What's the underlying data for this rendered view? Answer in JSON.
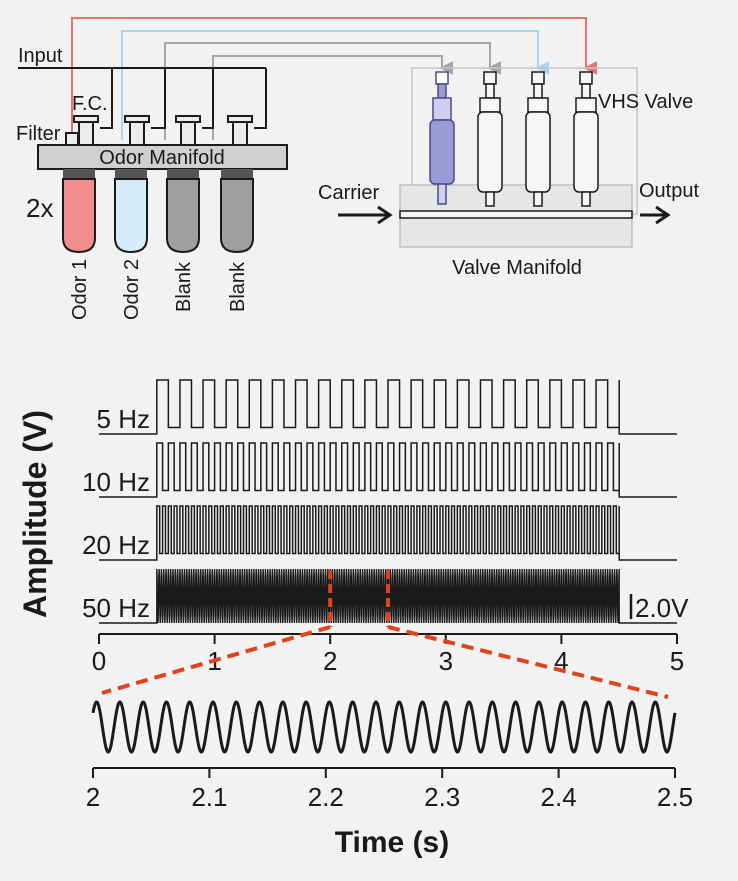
{
  "colors": {
    "background": "#f2f2f2",
    "ink": "#1a1a1a",
    "odor1": "#f08c8c",
    "odor2": "#d6ecfa",
    "blank": "#9e9e9e",
    "line_red": "#e57373",
    "line_blue": "#a9d4f2",
    "line_gray": "#a6a6a6",
    "zoom_dash": "#e0421a",
    "valve_active": "#9a9ad6"
  },
  "diagram": {
    "input_label": "Input",
    "fc_label": "F.C.",
    "filter_label": "Filter",
    "odor_manifold_label": "Odor Manifold",
    "multiplier_label": "2x",
    "vials": [
      {
        "label": "Odor 1",
        "color": "#f08c8c"
      },
      {
        "label": "Odor 2",
        "color": "#d6ecfa"
      },
      {
        "label": "Blank",
        "color": "#9e9e9e"
      },
      {
        "label": "Blank",
        "color": "#9e9e9e"
      }
    ],
    "valve_label": "VHS Valve",
    "carrier_label": "Carrier",
    "output_label": "Output",
    "valve_manifold_label": "Valve Manifold"
  },
  "chart_data": [
    {
      "type": "line",
      "ylabel": "Amplitude (V)",
      "xlabel": "",
      "xlim": [
        0,
        5
      ],
      "xticks": [
        "0",
        "1",
        "2",
        "3",
        "4",
        "5"
      ],
      "scale_bar_label": "2.0V",
      "stim_on_s": 0.5,
      "stim_off_s": 4.5,
      "series": [
        {
          "name": "5 Hz",
          "freq_hz": 5
        },
        {
          "name": "10 Hz",
          "freq_hz": 10
        },
        {
          "name": "20 Hz",
          "freq_hz": 20
        },
        {
          "name": "50 Hz",
          "freq_hz": 50
        }
      ],
      "zoom_window_s": [
        2.0,
        2.5
      ]
    },
    {
      "type": "line",
      "xlabel": "Time (s)",
      "xlim": [
        2.0,
        2.5
      ],
      "xticks": [
        "2",
        "2.1",
        "2.2",
        "2.3",
        "2.4",
        "2.5"
      ],
      "series": [
        {
          "freq_hz": 50
        }
      ]
    }
  ]
}
